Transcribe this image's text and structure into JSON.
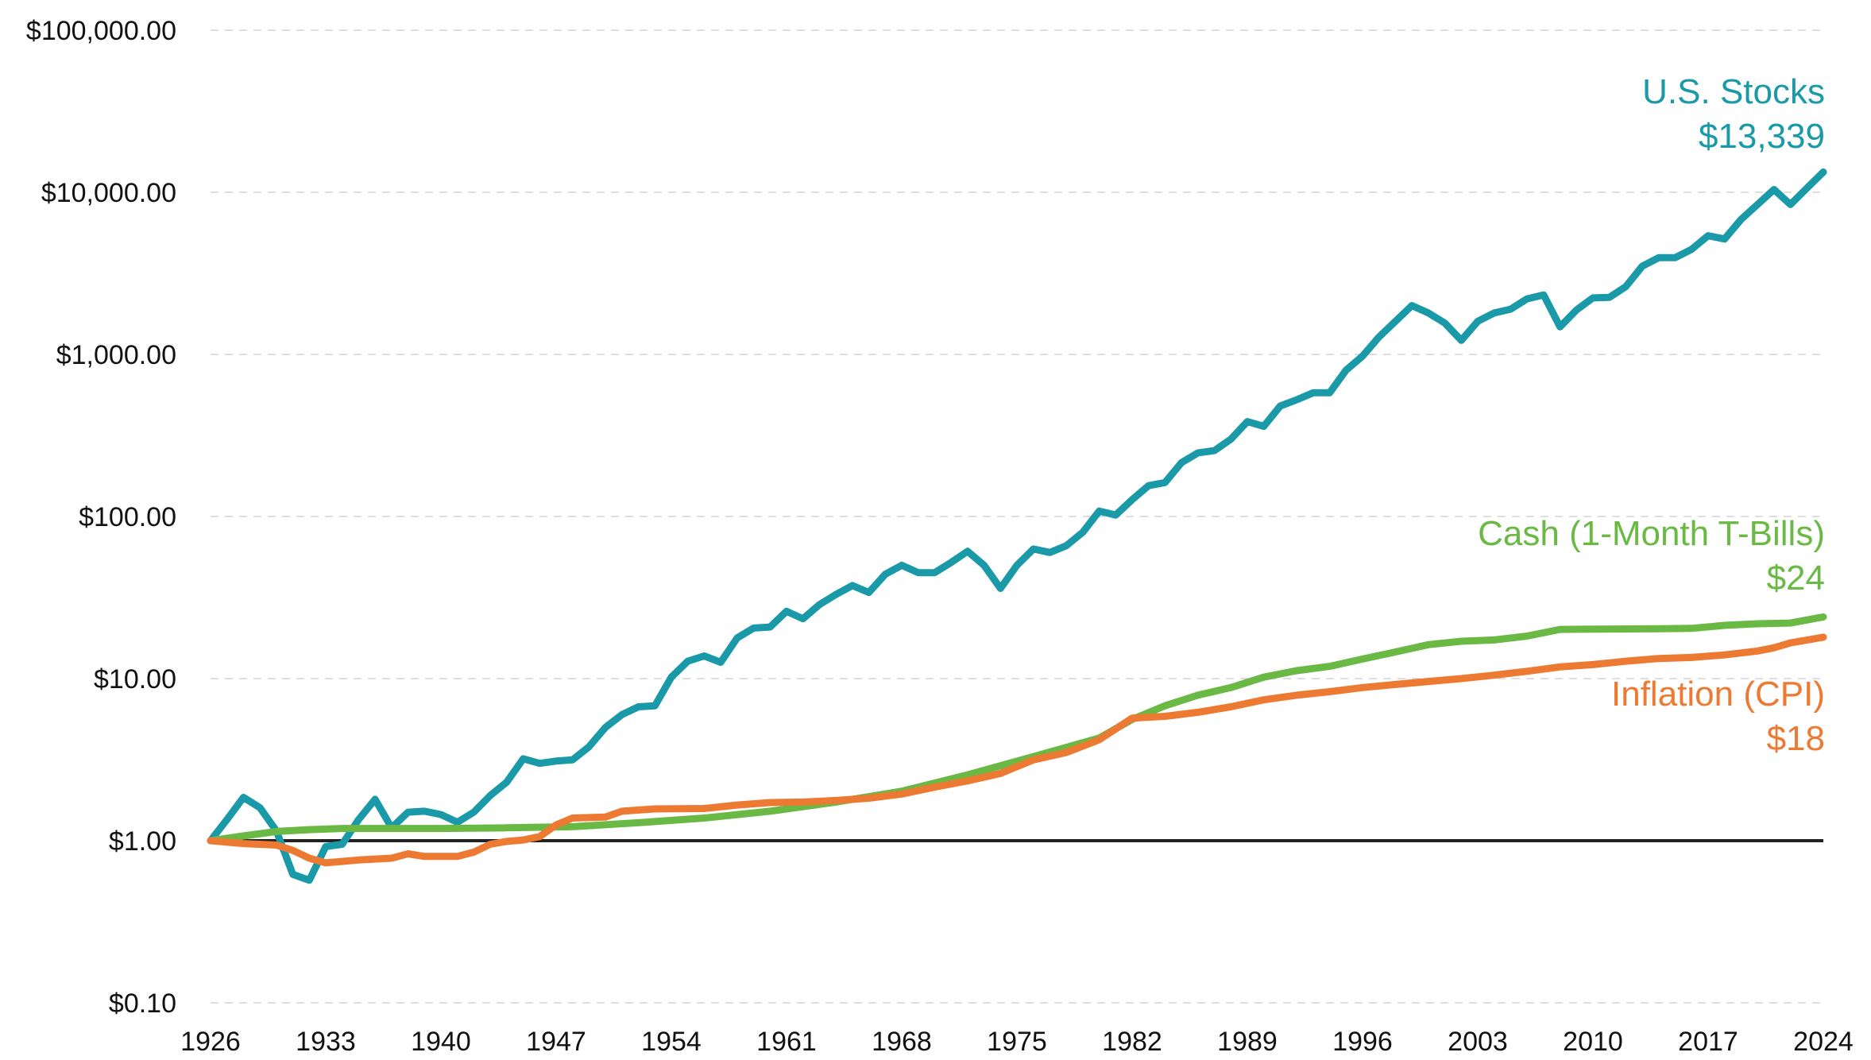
{
  "chart_data": {
    "type": "line",
    "title": "",
    "xlabel": "",
    "ylabel": "",
    "y_scale": "log",
    "ylim": [
      0.1,
      100000
    ],
    "xlim": [
      1926,
      2024
    ],
    "grid": "horizontal dashed",
    "legend": "none (direct labels at right end of lines)",
    "y_ticks": [
      {
        "value": 100000,
        "label": "$100,000.00"
      },
      {
        "value": 10000,
        "label": "$10,000.00"
      },
      {
        "value": 1000,
        "label": "$1,000.00"
      },
      {
        "value": 100,
        "label": "$100.00"
      },
      {
        "value": 10,
        "label": "$10.00"
      },
      {
        "value": 1,
        "label": "$1.00"
      },
      {
        "value": 0.1,
        "label": "$0.10"
      }
    ],
    "x_ticks": [
      {
        "value": 1926,
        "label": "1926"
      },
      {
        "value": 1933,
        "label": "1933"
      },
      {
        "value": 1940,
        "label": "1940"
      },
      {
        "value": 1947,
        "label": "1947"
      },
      {
        "value": 1954,
        "label": "1954"
      },
      {
        "value": 1961,
        "label": "1961"
      },
      {
        "value": 1968,
        "label": "1968"
      },
      {
        "value": 1975,
        "label": "1975"
      },
      {
        "value": 1982,
        "label": "1982"
      },
      {
        "value": 1989,
        "label": "1989"
      },
      {
        "value": 1996,
        "label": "1996"
      },
      {
        "value": 2003,
        "label": "2003"
      },
      {
        "value": 2010,
        "label": "2010"
      },
      {
        "value": 2017,
        "label": "2017"
      },
      {
        "value": 2024,
        "label": "2024"
      }
    ],
    "reference_line": {
      "value": 1
    },
    "series": [
      {
        "name": "U.S. Stocks",
        "end_value_label": "$13,339",
        "color": "#1a9aa8",
        "points": [
          [
            1926,
            1.0
          ],
          [
            1927,
            1.35
          ],
          [
            1928,
            1.85
          ],
          [
            1929,
            1.6
          ],
          [
            1930,
            1.15
          ],
          [
            1931,
            0.62
          ],
          [
            1932,
            0.57
          ],
          [
            1933,
            0.92
          ],
          [
            1934,
            0.95
          ],
          [
            1935,
            1.35
          ],
          [
            1936,
            1.8
          ],
          [
            1937,
            1.2
          ],
          [
            1938,
            1.5
          ],
          [
            1939,
            1.52
          ],
          [
            1940,
            1.45
          ],
          [
            1941,
            1.3
          ],
          [
            1942,
            1.5
          ],
          [
            1943,
            1.9
          ],
          [
            1944,
            2.3
          ],
          [
            1945,
            3.2
          ],
          [
            1946,
            3.0
          ],
          [
            1947,
            3.1
          ],
          [
            1948,
            3.15
          ],
          [
            1949,
            3.8
          ],
          [
            1950,
            5.0
          ],
          [
            1951,
            6.0
          ],
          [
            1952,
            6.7
          ],
          [
            1953,
            6.8
          ],
          [
            1954,
            10.2
          ],
          [
            1955,
            12.8
          ],
          [
            1956,
            13.8
          ],
          [
            1957,
            12.6
          ],
          [
            1958,
            17.8
          ],
          [
            1959,
            20.5
          ],
          [
            1960,
            20.8
          ],
          [
            1961,
            26.0
          ],
          [
            1962,
            23.4
          ],
          [
            1963,
            28.6
          ],
          [
            1964,
            33.0
          ],
          [
            1965,
            37.5
          ],
          [
            1966,
            34.0
          ],
          [
            1967,
            44.0
          ],
          [
            1968,
            50.0
          ],
          [
            1969,
            45.0
          ],
          [
            1970,
            45.0
          ],
          [
            1971,
            52.0
          ],
          [
            1972,
            61.0
          ],
          [
            1973,
            50.0
          ],
          [
            1974,
            36.0
          ],
          [
            1975,
            50.0
          ],
          [
            1976,
            63.0
          ],
          [
            1977,
            60.0
          ],
          [
            1978,
            66.0
          ],
          [
            1979,
            80.0
          ],
          [
            1980,
            108.0
          ],
          [
            1981,
            102.0
          ],
          [
            1982,
            127.0
          ],
          [
            1983,
            155.0
          ],
          [
            1984,
            162.0
          ],
          [
            1985,
            215.0
          ],
          [
            1986,
            247.0
          ],
          [
            1987,
            255.0
          ],
          [
            1988,
            300.0
          ],
          [
            1989,
            385.0
          ],
          [
            1990,
            360.0
          ],
          [
            1991,
            480.0
          ],
          [
            1992,
            525.0
          ],
          [
            1993,
            580.0
          ],
          [
            1994,
            580.0
          ],
          [
            1995,
            800.0
          ],
          [
            1996,
            975.0
          ],
          [
            1997,
            1280.0
          ],
          [
            1998,
            1600.0
          ],
          [
            1999,
            2000.0
          ],
          [
            2000,
            1800.0
          ],
          [
            2001,
            1560.0
          ],
          [
            2002,
            1220.0
          ],
          [
            2003,
            1600.0
          ],
          [
            2004,
            1800.0
          ],
          [
            2005,
            1900.0
          ],
          [
            2006,
            2200.0
          ],
          [
            2007,
            2330.0
          ],
          [
            2008,
            1480.0
          ],
          [
            2009,
            1880.0
          ],
          [
            2010,
            2230.0
          ],
          [
            2011,
            2250.0
          ],
          [
            2012,
            2620.0
          ],
          [
            2013,
            3500.0
          ],
          [
            2014,
            3950.0
          ],
          [
            2015,
            3950.0
          ],
          [
            2016,
            4450.0
          ],
          [
            2017,
            5400.0
          ],
          [
            2018,
            5150.0
          ],
          [
            2019,
            6800.0
          ],
          [
            2020,
            8400.0
          ],
          [
            2021,
            10400.0
          ],
          [
            2022,
            8400.0
          ],
          [
            2023,
            10600.0
          ],
          [
            2024,
            13339.0
          ]
        ]
      },
      {
        "name": "Cash (1-Month T-Bills)",
        "end_value_label": "$24",
        "color": "#6ab945",
        "points": [
          [
            1926,
            1.0
          ],
          [
            1928,
            1.07
          ],
          [
            1930,
            1.14
          ],
          [
            1932,
            1.17
          ],
          [
            1934,
            1.19
          ],
          [
            1940,
            1.19
          ],
          [
            1944,
            1.2
          ],
          [
            1948,
            1.22
          ],
          [
            1952,
            1.29
          ],
          [
            1956,
            1.38
          ],
          [
            1960,
            1.52
          ],
          [
            1964,
            1.73
          ],
          [
            1968,
            2.02
          ],
          [
            1972,
            2.55
          ],
          [
            1976,
            3.3
          ],
          [
            1980,
            4.3
          ],
          [
            1982,
            5.6
          ],
          [
            1984,
            6.8
          ],
          [
            1986,
            7.9
          ],
          [
            1988,
            8.8
          ],
          [
            1990,
            10.2
          ],
          [
            1992,
            11.2
          ],
          [
            1994,
            11.9
          ],
          [
            1996,
            13.2
          ],
          [
            1998,
            14.6
          ],
          [
            2000,
            16.2
          ],
          [
            2002,
            17.0
          ],
          [
            2004,
            17.3
          ],
          [
            2006,
            18.3
          ],
          [
            2008,
            20.1
          ],
          [
            2010,
            20.2
          ],
          [
            2014,
            20.3
          ],
          [
            2016,
            20.4
          ],
          [
            2018,
            21.3
          ],
          [
            2020,
            21.8
          ],
          [
            2022,
            22.0
          ],
          [
            2024,
            24.0
          ]
        ]
      },
      {
        "name": "Inflation (CPI)",
        "end_value_label": "$18",
        "color": "#ed7a32",
        "points": [
          [
            1926,
            1.0
          ],
          [
            1928,
            0.96
          ],
          [
            1930,
            0.94
          ],
          [
            1931,
            0.87
          ],
          [
            1932,
            0.78
          ],
          [
            1933,
            0.73
          ],
          [
            1935,
            0.76
          ],
          [
            1937,
            0.78
          ],
          [
            1938,
            0.83
          ],
          [
            1939,
            0.8
          ],
          [
            1941,
            0.8
          ],
          [
            1942,
            0.85
          ],
          [
            1943,
            0.95
          ],
          [
            1944,
            0.99
          ],
          [
            1945,
            1.01
          ],
          [
            1946,
            1.06
          ],
          [
            1947,
            1.25
          ],
          [
            1948,
            1.38
          ],
          [
            1950,
            1.4
          ],
          [
            1951,
            1.52
          ],
          [
            1953,
            1.57
          ],
          [
            1956,
            1.58
          ],
          [
            1958,
            1.66
          ],
          [
            1960,
            1.72
          ],
          [
            1962,
            1.73
          ],
          [
            1964,
            1.77
          ],
          [
            1966,
            1.83
          ],
          [
            1968,
            1.94
          ],
          [
            1970,
            2.14
          ],
          [
            1972,
            2.34
          ],
          [
            1974,
            2.6
          ],
          [
            1976,
            3.15
          ],
          [
            1978,
            3.5
          ],
          [
            1980,
            4.2
          ],
          [
            1982,
            5.7
          ],
          [
            1984,
            5.85
          ],
          [
            1986,
            6.2
          ],
          [
            1988,
            6.7
          ],
          [
            1990,
            7.4
          ],
          [
            1992,
            7.9
          ],
          [
            1994,
            8.3
          ],
          [
            1996,
            8.8
          ],
          [
            1998,
            9.2
          ],
          [
            2000,
            9.6
          ],
          [
            2002,
            10.0
          ],
          [
            2004,
            10.5
          ],
          [
            2006,
            11.1
          ],
          [
            2008,
            11.8
          ],
          [
            2010,
            12.2
          ],
          [
            2012,
            12.8
          ],
          [
            2014,
            13.3
          ],
          [
            2016,
            13.5
          ],
          [
            2018,
            14.0
          ],
          [
            2020,
            14.8
          ],
          [
            2021,
            15.5
          ],
          [
            2022,
            16.6
          ],
          [
            2024,
            18.0
          ]
        ]
      }
    ]
  },
  "colors": {
    "stocks": "#1a9aa8",
    "cash": "#6ab945",
    "inflation": "#ed7a32",
    "grid": "#dedede",
    "reference_line": "#222222"
  }
}
